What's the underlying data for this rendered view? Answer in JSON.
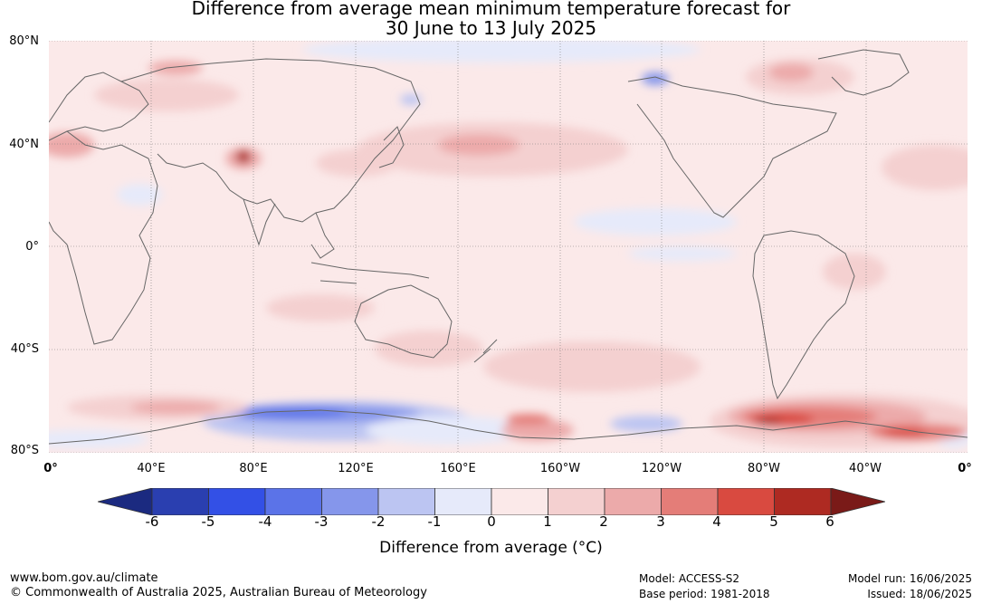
{
  "title_line1": "Difference from average mean minimum temperature forecast for",
  "title_line2": "30 June to 13 July 2025",
  "lat_labels": [
    "80°N",
    "40°N",
    "0°",
    "40°S",
    "80°S"
  ],
  "lon_labels": [
    "0°",
    "40°E",
    "80°E",
    "120°E",
    "160°E",
    "160°W",
    "120°W",
    "80°W",
    "40°W",
    "0°"
  ],
  "colorbar": {
    "ticks": [
      "-6",
      "-5",
      "-4",
      "-3",
      "-2",
      "-1",
      "0",
      "1",
      "2",
      "3",
      "4",
      "5",
      "6"
    ],
    "colors": [
      "#2a3fb0",
      "#3350e6",
      "#5b73e8",
      "#8596eb",
      "#bcc5f2",
      "#e6eafa",
      "#fbe9e9",
      "#f4d0d0",
      "#ecaaaa",
      "#e47d78",
      "#d94a40",
      "#ae2a22"
    ],
    "under_color": "#1b2a80",
    "over_color": "#7a1a18",
    "label": "Difference from average (°C)"
  },
  "footer": {
    "url": "www.bom.gov.au/climate",
    "copyright": "© Commonwealth of Australia 2025, Australian Bureau of Meteorology",
    "model": "Model: ACCESS-S2",
    "base_period": "Base period: 1981-2018",
    "model_run": "Model run: 16/06/2025",
    "issued": "Issued: 18/06/2025"
  }
}
